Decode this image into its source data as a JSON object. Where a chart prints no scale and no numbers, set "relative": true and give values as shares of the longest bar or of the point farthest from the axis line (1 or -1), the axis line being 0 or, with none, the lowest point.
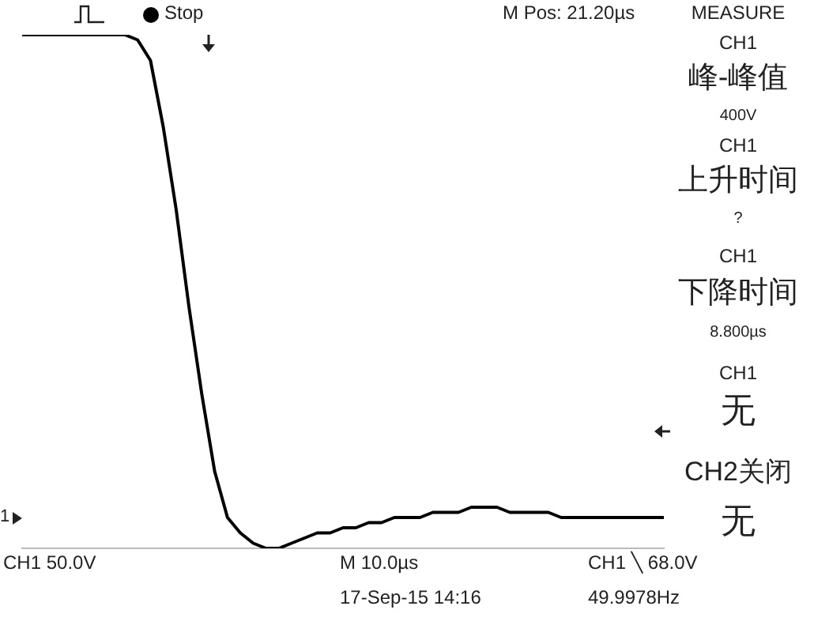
{
  "chart_data": {
    "type": "line",
    "relative": true,
    "marker": "none",
    "categories": [
      null,
      null,
      null,
      null,
      null,
      null,
      null,
      null,
      null,
      null,
      null,
      null,
      null,
      null,
      null,
      null,
      null,
      null,
      null,
      null,
      null,
      null,
      null,
      null,
      null,
      null,
      null,
      null,
      null,
      null,
      null,
      null,
      null,
      null,
      null,
      null,
      null,
      null,
      null,
      null,
      null,
      null,
      null,
      null,
      null,
      null,
      null,
      null,
      null,
      null,
      null
    ],
    "series": [
      {
        "color": "#000000",
        "values": [
          1,
          1,
          1,
          1,
          1,
          1,
          1,
          1,
          1,
          0.99,
          0.95,
          0.82,
          0.66,
          0.47,
          0.3,
          0.15,
          0.06,
          0.03,
          0.01,
          0,
          0,
          0.01,
          0.02,
          0.03,
          0.03,
          0.04,
          0.04,
          0.05,
          0.05,
          0.06,
          0.06,
          0.06,
          0.07,
          0.07,
          0.07,
          0.08,
          0.08,
          0.08,
          0.07,
          0.07,
          0.07,
          0.07,
          0.06,
          0.06,
          0.06,
          0.06,
          0.06,
          0.06,
          0.06,
          0.06,
          0.06
        ]
      }
    ],
    "annotations": [
      "Stop",
      "M Pos: 21.20µs",
      "MEASURE",
      "CH1",
      "峰-峰值",
      "400V",
      "CH1",
      "上升时间",
      "?",
      "CH1",
      "下降时间",
      "8.800µs",
      "CH1",
      "无",
      "CH2关闭",
      "无",
      "CH1  50.0V",
      "M 10.0µs",
      "17-Sep-15 14:16",
      "CH1 ╲ 68.0V",
      "49.9978Hz",
      "1"
    ]
  }
}
